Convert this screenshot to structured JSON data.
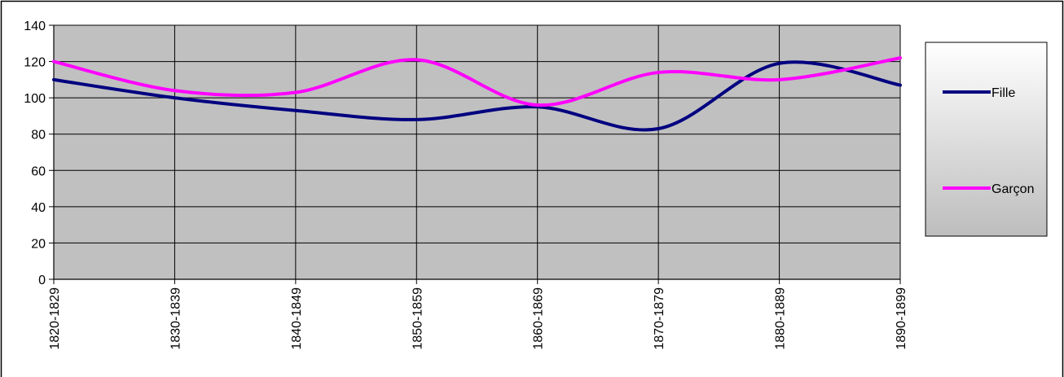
{
  "chart_data": {
    "type": "line",
    "title": "",
    "xlabel": "",
    "ylabel": "",
    "categories": [
      "1820-1829",
      "1830-1839",
      "1840-1849",
      "1850-1859",
      "1860-1869",
      "1870-1879",
      "1880-1889",
      "1890-1899"
    ],
    "ylim": [
      0,
      140
    ],
    "yticks": [
      0,
      20,
      40,
      60,
      80,
      100,
      120,
      140
    ],
    "grid": true,
    "smooth": true,
    "legend_position": "right",
    "plot_background": "#c0c0c0",
    "series": [
      {
        "name": "Fille",
        "color": "#000080",
        "values": [
          110,
          100,
          93,
          88,
          95,
          83,
          119,
          107
        ]
      },
      {
        "name": "Garçon",
        "color": "#ff00ff",
        "values": [
          120,
          104,
          103,
          121,
          96,
          114,
          110,
          122
        ]
      }
    ]
  }
}
